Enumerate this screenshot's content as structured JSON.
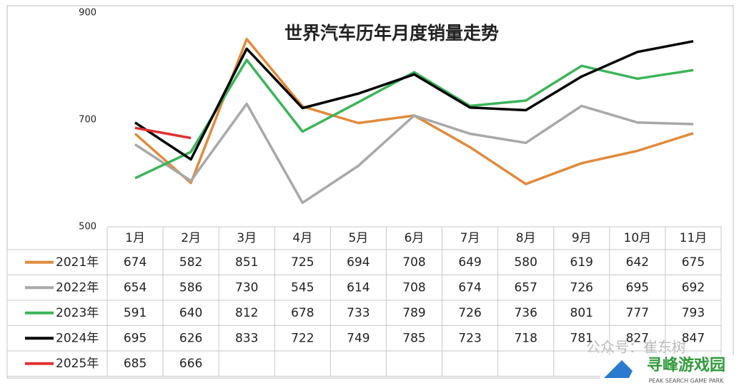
{
  "chart_data": {
    "type": "line",
    "title": "世界汽车历年月度销量走势",
    "categories": [
      "1月",
      "2月",
      "3月",
      "4月",
      "5月",
      "6月",
      "7月",
      "8月",
      "9月",
      "10月",
      "11月"
    ],
    "series": [
      {
        "name": "2021年",
        "color": "#e08a3c",
        "values": [
          674,
          582,
          851,
          725,
          694,
          708,
          649,
          580,
          619,
          642,
          675
        ]
      },
      {
        "name": "2022年",
        "color": "#a8a8a8",
        "values": [
          654,
          586,
          730,
          545,
          614,
          708,
          674,
          657,
          726,
          695,
          692
        ]
      },
      {
        "name": "2023年",
        "color": "#3cb45a",
        "values": [
          591,
          640,
          812,
          678,
          733,
          789,
          726,
          736,
          801,
          777,
          793
        ]
      },
      {
        "name": "2024年",
        "color": "#000000",
        "values": [
          695,
          626,
          833,
          722,
          749,
          785,
          723,
          718,
          781,
          827,
          847
        ]
      },
      {
        "name": "2025年",
        "color": "#e03030",
        "values": [
          685,
          666,
          null,
          null,
          null,
          null,
          null,
          null,
          null,
          null,
          null
        ]
      }
    ],
    "ylim": [
      500,
      900
    ],
    "yticks": [
      500,
      700,
      900
    ],
    "grid": false,
    "data_table": true
  },
  "watermarks": [
    "公众号：崔东树",
    "寻峰游戏园",
    "PEAK SEARCH GAME PARK"
  ]
}
